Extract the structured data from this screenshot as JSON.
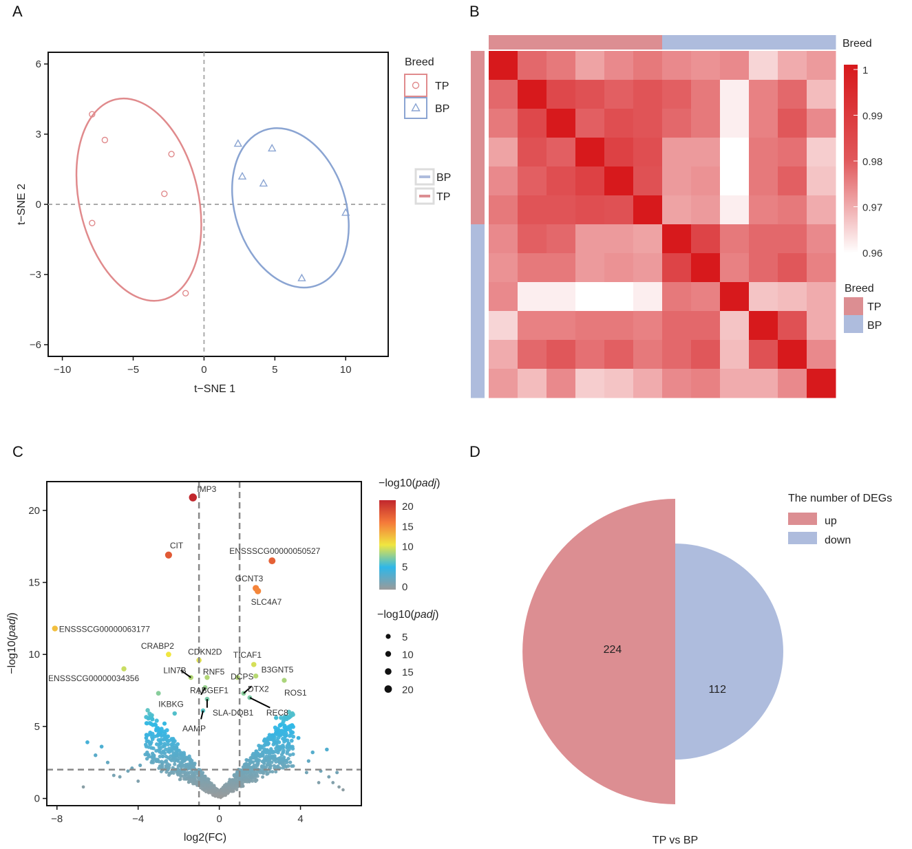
{
  "panels": {
    "A": "A",
    "B": "B",
    "C": "C",
    "D": "D"
  },
  "chart_data": [
    {
      "panel": "A",
      "type": "scatter",
      "xlabel": "t−SNE 1",
      "ylabel": "t−SNE 2",
      "xlim": [
        -11,
        13
      ],
      "ylim": [
        -6.5,
        6.5
      ],
      "xticks": [
        -10,
        -5,
        0,
        5,
        10
      ],
      "xtick_labels": [
        "−10",
        "−5",
        "0",
        "5",
        "10"
      ],
      "yticks": [
        -6,
        -3,
        0,
        3,
        6
      ],
      "ytick_labels": [
        "−6",
        "−3",
        "0",
        "3",
        "6"
      ],
      "reference_lines": {
        "x": 0,
        "y": 0
      },
      "legend": {
        "title": "Breed",
        "items": [
          "TP",
          "BP"
        ]
      },
      "legend2": {
        "items": [
          "BP",
          "TP"
        ]
      },
      "series": [
        {
          "name": "TP",
          "color": "#e08a8c",
          "marker": "circle",
          "points": [
            [
              -7.9,
              3.85
            ],
            [
              -7,
              2.75
            ],
            [
              -2.3,
              2.15
            ],
            [
              -2.8,
              0.45
            ],
            [
              -7.9,
              -0.8
            ],
            [
              -1.3,
              -3.8
            ]
          ],
          "ellipse": {
            "cx": -4.6,
            "cy": 0.2,
            "rx": 4.2,
            "ry": 4.4,
            "rotate": 13
          }
        },
        {
          "name": "BP",
          "color": "#8aa4d2",
          "marker": "triangle",
          "points": [
            [
              2.4,
              2.6
            ],
            [
              4.8,
              2.4
            ],
            [
              2.7,
              1.2
            ],
            [
              4.2,
              0.9
            ],
            [
              10,
              -0.35
            ],
            [
              6.9,
              -3.15
            ]
          ],
          "ellipse": {
            "cx": 6.1,
            "cy": -0.15,
            "rx": 3.9,
            "ry": 3.5,
            "rotate": 18
          }
        }
      ]
    },
    {
      "panel": "B",
      "type": "heatmap",
      "n": 12,
      "annotation_label": "Breed",
      "groups": [
        "TP",
        "TP",
        "TP",
        "TP",
        "TP",
        "TP",
        "BP",
        "BP",
        "BP",
        "BP",
        "BP",
        "BP"
      ],
      "group_colors": {
        "TP": "#dc8e92",
        "BP": "#aebcdd"
      },
      "colorbar": {
        "min": 0.96,
        "max": 1,
        "ticks": [
          "1",
          "0.99",
          "0.98",
          "0.97",
          "0.96"
        ]
      },
      "legend": {
        "title": "Breed",
        "items": [
          "TP",
          "BP"
        ]
      },
      "values": [
        [
          1,
          0.978,
          0.976,
          0.971,
          0.974,
          0.976,
          0.974,
          0.973,
          0.974,
          0.965,
          0.97,
          0.972
        ],
        [
          0.978,
          1,
          0.985,
          0.982,
          0.979,
          0.981,
          0.979,
          0.976,
          0.962,
          0.975,
          0.978,
          0.968
        ],
        [
          0.976,
          0.985,
          1,
          0.979,
          0.983,
          0.981,
          0.978,
          0.976,
          0.962,
          0.975,
          0.98,
          0.974
        ],
        [
          0.971,
          0.982,
          0.979,
          1,
          0.987,
          0.983,
          0.972,
          0.972,
          0.96,
          0.976,
          0.977,
          0.966
        ],
        [
          0.974,
          0.979,
          0.983,
          0.987,
          1,
          0.982,
          0.972,
          0.973,
          0.96,
          0.976,
          0.979,
          0.967
        ],
        [
          0.976,
          0.981,
          0.981,
          0.983,
          0.982,
          1,
          0.971,
          0.972,
          0.962,
          0.975,
          0.976,
          0.97
        ],
        [
          0.974,
          0.979,
          0.978,
          0.972,
          0.972,
          0.971,
          1,
          0.986,
          0.976,
          0.978,
          0.978,
          0.974
        ],
        [
          0.973,
          0.976,
          0.976,
          0.972,
          0.973,
          0.972,
          0.986,
          1,
          0.975,
          0.978,
          0.98,
          0.975
        ],
        [
          0.974,
          0.962,
          0.962,
          0.96,
          0.96,
          0.962,
          0.976,
          0.975,
          1,
          0.967,
          0.968,
          0.97
        ],
        [
          0.965,
          0.975,
          0.975,
          0.976,
          0.976,
          0.975,
          0.978,
          0.978,
          0.967,
          1,
          0.982,
          0.97
        ],
        [
          0.97,
          0.978,
          0.98,
          0.977,
          0.979,
          0.976,
          0.978,
          0.98,
          0.968,
          0.982,
          1,
          0.974
        ],
        [
          0.972,
          0.968,
          0.974,
          0.966,
          0.967,
          0.97,
          0.974,
          0.975,
          0.97,
          0.97,
          0.974,
          1
        ]
      ]
    },
    {
      "panel": "C",
      "type": "scatter",
      "title": "",
      "xlabel": "log2(FC)",
      "ylabel_prefix": "−log10(",
      "ylabel_italic": "padj",
      "ylabel_suffix": ")",
      "xlim": [
        -8.5,
        7
      ],
      "ylim": [
        -0.5,
        22
      ],
      "xticks": [
        -8,
        -4,
        0,
        4
      ],
      "xtick_labels": [
        "−8",
        "−4",
        "0",
        "4"
      ],
      "yticks": [
        0,
        5,
        10,
        15,
        20
      ],
      "ytick_labels": [
        "0",
        "5",
        "10",
        "15",
        "20"
      ],
      "thresholds": {
        "fc": [
          -1,
          1
        ],
        "padj": 2
      },
      "color_legend": {
        "title_prefix": "−log10(",
        "title_italic": "padj",
        "title_suffix": ")",
        "ticks": [
          "20",
          "15",
          "10",
          "5",
          "0"
        ]
      },
      "size_legend": {
        "title_prefix": "−log10(",
        "title_italic": "padj",
        "title_suffix": ")",
        "items": [
          "5",
          "10",
          "15",
          "20"
        ]
      },
      "labeled_points": [
        {
          "gene": "IMP3",
          "x": -1.3,
          "y": 20.9
        },
        {
          "gene": "CIT",
          "x": -2.5,
          "y": 16.9
        },
        {
          "gene": "ENSSSCG00000050527",
          "x": 2.6,
          "y": 16.5
        },
        {
          "gene": "GCNT3",
          "x": 1.8,
          "y": 14.6
        },
        {
          "gene": "SLC4A7",
          "x": 1.9,
          "y": 14.4
        },
        {
          "gene": "ENSSSCG00000063177",
          "x": -8.1,
          "y": 11.8
        },
        {
          "gene": "CRABP2",
          "x": -2.5,
          "y": 10.0
        },
        {
          "gene": "CDKN2D",
          "x": -1.0,
          "y": 9.6
        },
        {
          "gene": "TICAF1",
          "x": 1.7,
          "y": 9.3
        },
        {
          "gene": "ENSSSCG00000034356",
          "x": -4.7,
          "y": 9.0
        },
        {
          "gene": "LIN7B",
          "x": -1.4,
          "y": 8.4
        },
        {
          "gene": "RNF5",
          "x": -0.6,
          "y": 8.4
        },
        {
          "gene": "B3GNT5",
          "x": 1.8,
          "y": 8.5
        },
        {
          "gene": "DCPS",
          "x": 0.9,
          "y": 8.4
        },
        {
          "gene": "ROS1",
          "x": 3.2,
          "y": 8.2
        },
        {
          "gene": "RABGEF1",
          "x": -0.7,
          "y": 7.7
        },
        {
          "gene": "DTX2",
          "x": 1.2,
          "y": 7.3
        },
        {
          "gene": "IKBKG",
          "x": -3.0,
          "y": 7.3
        },
        {
          "gene": "REC8",
          "x": 1.5,
          "y": 7.0
        },
        {
          "gene": "SLA-DQB1",
          "x": -0.6,
          "y": 6.9
        },
        {
          "gene": "AAMP",
          "x": -0.8,
          "y": 6.1
        }
      ]
    },
    {
      "panel": "D",
      "type": "pie",
      "title": "TP vs BP",
      "legend_title": "The number of DEGs",
      "slices": [
        {
          "label": "up",
          "value": 224,
          "color": "#dc8e92"
        },
        {
          "label": "down",
          "value": 112,
          "color": "#aebcdd"
        }
      ]
    }
  ]
}
